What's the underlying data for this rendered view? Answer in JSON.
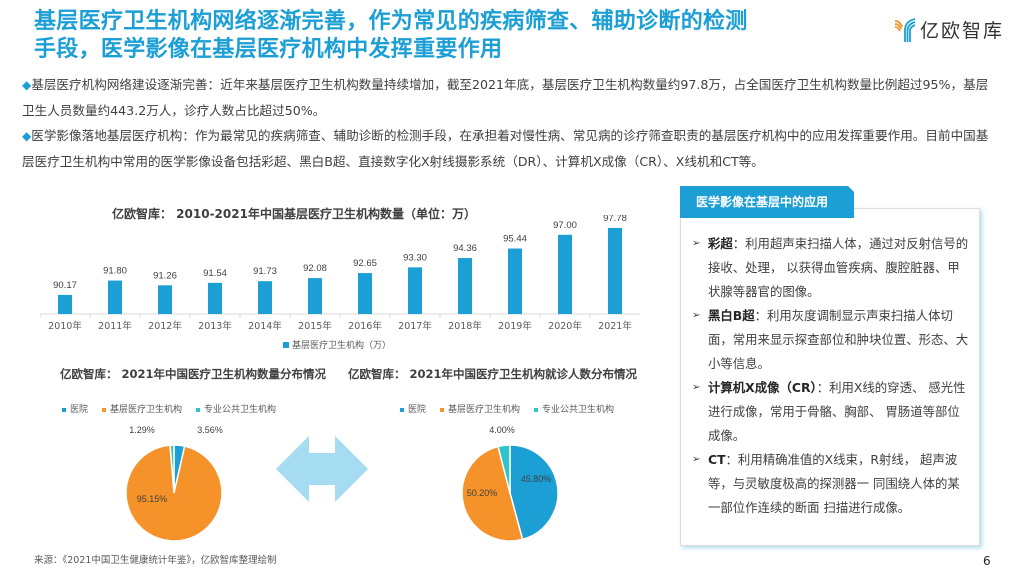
{
  "title": {
    "line1": "基层医疗卫生机构网络逐渐完善，作为常见的疾病筛查、辅助诊断的检测",
    "line2": "手段，医学影像在基层医疗机构中发挥重要作用"
  },
  "logo": {
    "text": "亿欧智库",
    "icon": "yiou-logo-icon"
  },
  "paragraphs": [
    {
      "bullet": "◆",
      "text": "基层医疗机构网络建设逐渐完善：近年来基层医疗卫生机构数量持续增加，截至2021年底，基层医疗卫生机构数量约97.8万，占全国医疗卫生机构数量比例超过95%，基层卫生人员数量约443.2万人，诊疗人数占比超过50%。"
    },
    {
      "bullet": "◆",
      "text": "医学影像落地基层医疗机构：作为最常见的疾病筛查、辅助诊断的检测手段，在承担着对慢性病、常见病的诊疗筛查职责的基层医疗机构中的应用发挥重要作用。目前中国基层医疗卫生机构中常用的医学影像设备包括彩超、黑白B超、直接数字化X射线摄影系统（DR）、计算机X成像（CR）、X线机和CT等。"
    }
  ],
  "chart_data": [
    {
      "type": "bar",
      "title": "亿欧智库： 2010-2021年中国基层医疗卫生机构数量（单位：万）",
      "categories": [
        "2010年",
        "2011年",
        "2012年",
        "2013年",
        "2014年",
        "2015年",
        "2016年",
        "2017年",
        "2018年",
        "2019年",
        "2020年",
        "2021年"
      ],
      "series": [
        {
          "name": "基层医疗卫生机构（万）",
          "color": "#1c9fd5",
          "values": [
            90.17,
            91.8,
            91.26,
            91.54,
            91.73,
            92.08,
            92.65,
            93.3,
            94.36,
            95.44,
            97.0,
            97.78
          ]
        }
      ],
      "labels": [
        "90.17",
        "91.80",
        "91.26",
        "91.54",
        "91.73",
        "92.08",
        "92.65",
        "93.30",
        "94.36",
        "95.44",
        "97.00",
        "97.78"
      ],
      "xlabel": "",
      "ylabel": "",
      "ylim": [
        88,
        98
      ],
      "grid": false,
      "legend_position": "bottom"
    },
    {
      "type": "pie",
      "title": "亿欧智库： 2021年中国医疗卫生机构数量分布情况",
      "categories": [
        "医院",
        "基层医疗卫生机构",
        "专业公共卫生机构"
      ],
      "values": [
        3.56,
        95.15,
        1.29
      ],
      "labels": [
        "3.56%",
        "95.15%",
        "1.29%"
      ],
      "colors": [
        "#1c9fd5",
        "#f5922a",
        "#2ec4c9"
      ],
      "legend_position": "top"
    },
    {
      "type": "pie",
      "title": "亿欧智库： 2021年中国医疗卫生机构就诊人数分布情况",
      "categories": [
        "医院",
        "基层医疗卫生机构",
        "专业公共卫生机构"
      ],
      "values": [
        45.8,
        50.2,
        4.0
      ],
      "labels": [
        "45.80%",
        "50.20%",
        "4.00%"
      ],
      "colors": [
        "#1c9fd5",
        "#f5922a",
        "#2ec4c9"
      ],
      "legend_position": "top"
    }
  ],
  "panel": {
    "header": "医学影像在基层中的应用",
    "items": [
      {
        "term": "彩超",
        "text": "：利用超声束扫描人体，通过对反射信号的接收、处理， 以获得血管疾病、腹腔脏器、甲状腺等器官的图像。"
      },
      {
        "term": "黑白B超",
        "text": "：利用灰度调制显示声束扫描人体切面，常用来显示探查部位和肿块位置、形态、大小等信息。"
      },
      {
        "term": "计算机X成像（CR）",
        "text": "：利用X线的穿透、 感光性进行成像，常用于骨骼、胸部、 胃肠道等部位成像。"
      },
      {
        "term": "CT",
        "text": "：利用精确准值的X线束，R射线， 超声波等，与灵敏度极高的探测器一 同围绕人体的某一部位作连续的断面 扫描进行成像。"
      }
    ],
    "bullet": "➢"
  },
  "source": "来源：《2021中国卫生健康统计年鉴》，亿欧智库整理绘制",
  "page_number": "6",
  "colors": {
    "accent": "#1c9fd5",
    "orange": "#f5922a",
    "teal": "#2ec4c9",
    "arrow": "#a6dcf2"
  }
}
